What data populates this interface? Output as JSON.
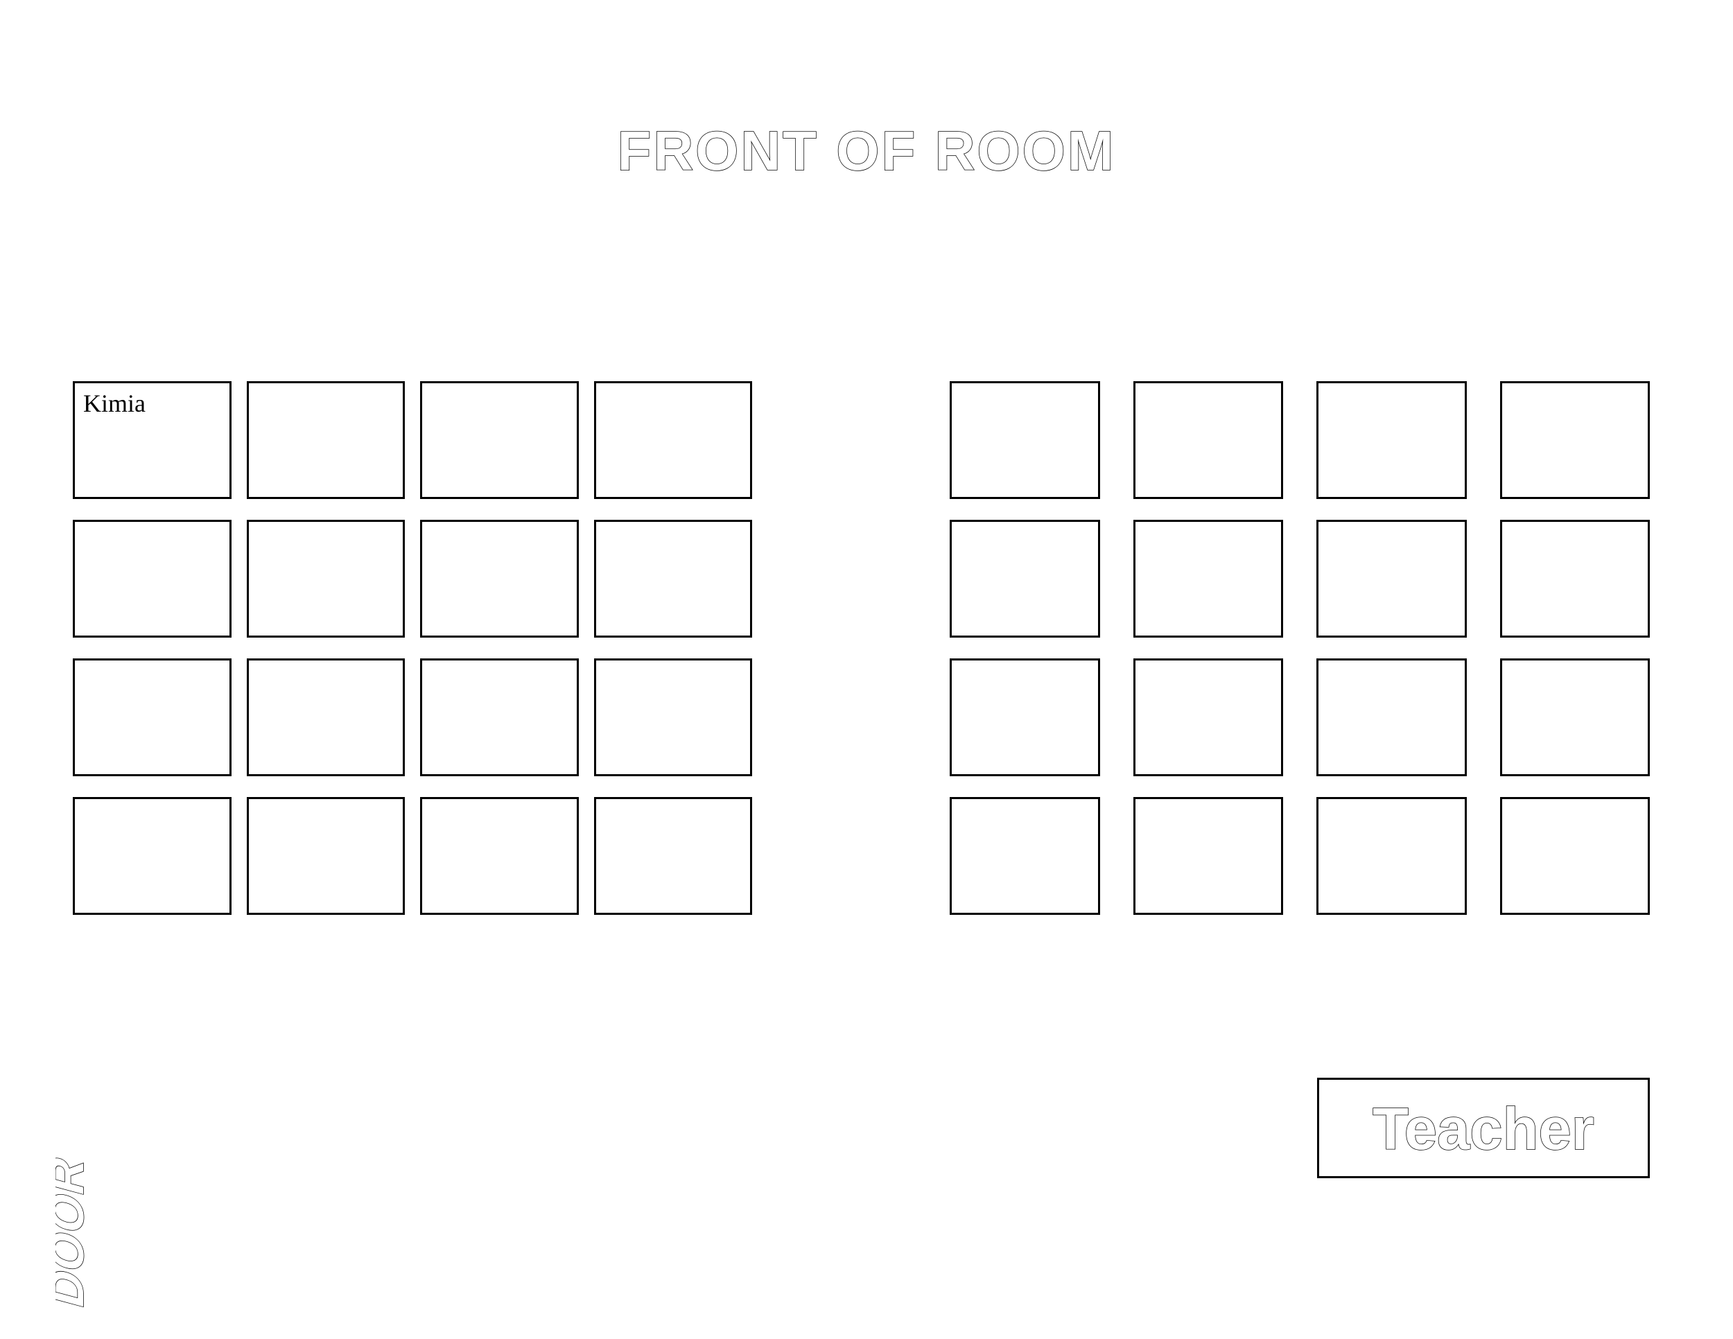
{
  "title": "FRONT OF ROOM",
  "title_fontsize": 80,
  "door_label": "DOOR",
  "door_fontsize": 60,
  "teacher_label": "Teacher",
  "teacher_fontsize": 80,
  "background_color": "#ffffff",
  "border_color": "#000000",
  "text_stroke_color": "#000000",
  "text_fill_color": "#ffffff",
  "left_block": {
    "rows": 4,
    "cols": 4,
    "cell_border_width": 3,
    "col_gap": 22,
    "row_gap": 30,
    "seats": [
      "Kimia",
      "",
      "",
      "",
      "",
      "",
      "",
      "",
      "",
      "",
      "",
      "",
      "",
      "",
      "",
      ""
    ]
  },
  "right_block": {
    "rows": 4,
    "cols": 4,
    "cell_border_width": 3,
    "col_gap": 48,
    "row_gap": 30,
    "seats": [
      "",
      "",
      "",
      "",
      "",
      "",
      "",
      "",
      "",
      "",
      "",
      "",
      "",
      "",
      "",
      ""
    ]
  }
}
